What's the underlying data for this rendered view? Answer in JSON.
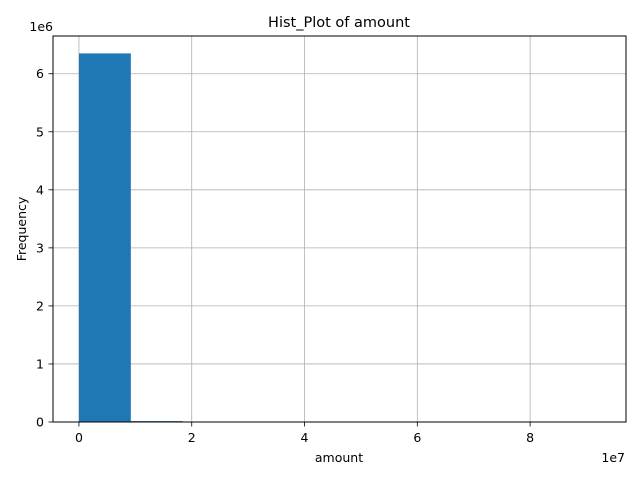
{
  "chart_data": {
    "type": "bar",
    "title": "Hist_Plot of amount",
    "xlabel": "amount",
    "ylabel": "Frequency",
    "x_multiplier": "1e7",
    "y_multiplier": "1e6",
    "xlim": [
      -4600000,
      97000000
    ],
    "ylim": [
      0,
      6650000
    ],
    "x_ticks": [
      0,
      20000000,
      40000000,
      60000000,
      80000000
    ],
    "x_tick_labels": [
      "0",
      "2",
      "4",
      "6",
      "8"
    ],
    "y_ticks": [
      0,
      1000000,
      2000000,
      3000000,
      4000000,
      5000000,
      6000000
    ],
    "y_tick_labels": [
      "0",
      "1",
      "2",
      "3",
      "4",
      "5",
      "6"
    ],
    "grid": true,
    "bar_color": "#1f77b4",
    "bins": [
      {
        "start": 0,
        "end": 9200000,
        "value": 6350000
      },
      {
        "start": 9200000,
        "end": 18400000,
        "value": 15000
      },
      {
        "start": 18400000,
        "end": 27600000,
        "value": 1200
      },
      {
        "start": 27600000,
        "end": 36800000,
        "value": 200
      },
      {
        "start": 36800000,
        "end": 46000000,
        "value": 50
      },
      {
        "start": 46000000,
        "end": 55200000,
        "value": 20
      },
      {
        "start": 55200000,
        "end": 64400000,
        "value": 10
      },
      {
        "start": 64400000,
        "end": 73600000,
        "value": 5
      },
      {
        "start": 73600000,
        "end": 82800000,
        "value": 3
      },
      {
        "start": 82800000,
        "end": 92000000,
        "value": 2
      }
    ]
  }
}
